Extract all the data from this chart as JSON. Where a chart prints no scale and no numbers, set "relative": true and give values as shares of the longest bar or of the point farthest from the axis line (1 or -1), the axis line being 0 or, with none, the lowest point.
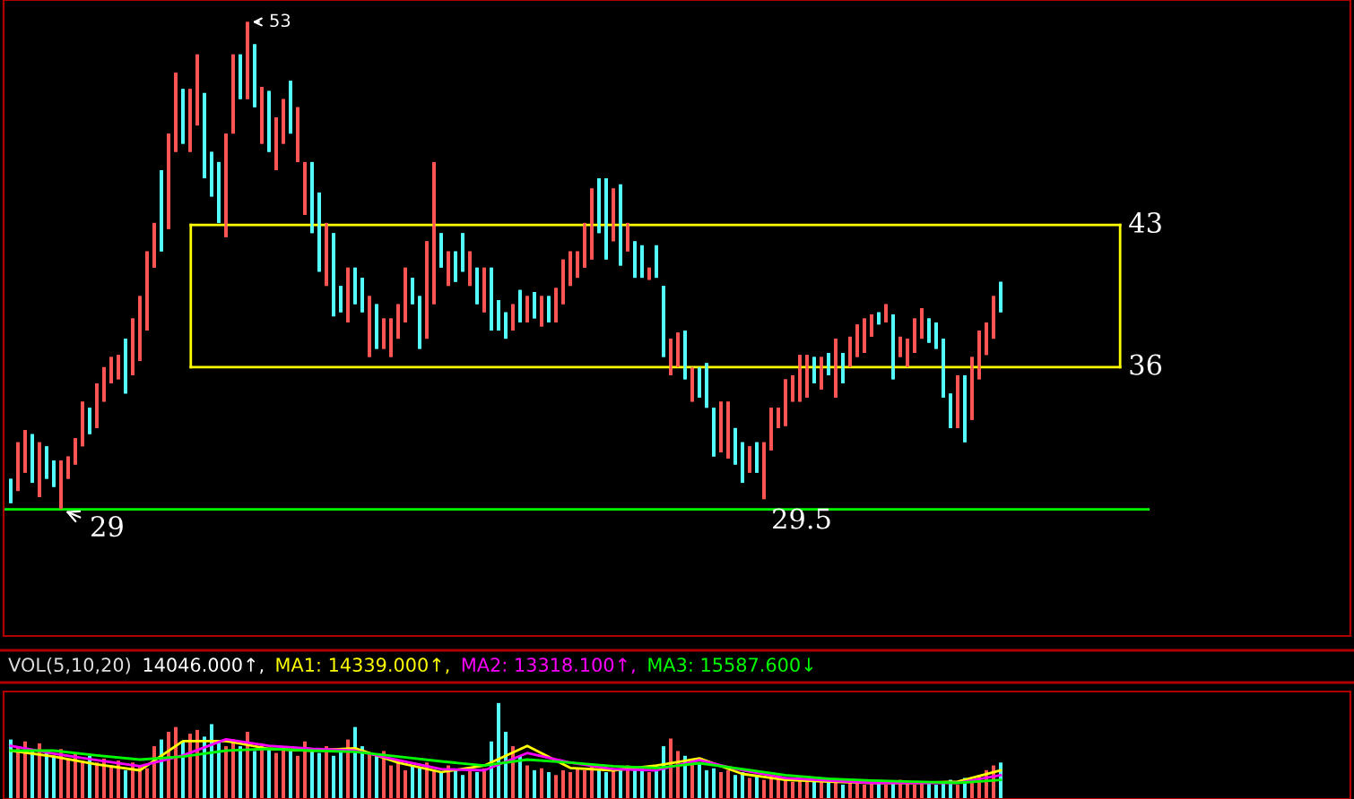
{
  "chart_data": [
    {
      "type": "candlestick",
      "categories": [
        null,
        null,
        null,
        null,
        null,
        null,
        null,
        null,
        null,
        null,
        null,
        null,
        null,
        null,
        null,
        null,
        null,
        null,
        null,
        null,
        null,
        null,
        null,
        null,
        null,
        null,
        null,
        null,
        null,
        null,
        null,
        null,
        null,
        null,
        null,
        null,
        null,
        null,
        null,
        null,
        null,
        null,
        null,
        null,
        null,
        null,
        null,
        null,
        null,
        null,
        null,
        null,
        null,
        null,
        null,
        null,
        null,
        null,
        null,
        null,
        null,
        null,
        null,
        null,
        null,
        null,
        null,
        null,
        null,
        null,
        null,
        null,
        null,
        null,
        null,
        null,
        null,
        null,
        null,
        null,
        null,
        null,
        null,
        null,
        null,
        null,
        null,
        null,
        null,
        null,
        null,
        null,
        null,
        null,
        null,
        null,
        null,
        null,
        null,
        null,
        null,
        null,
        null,
        null,
        null,
        null,
        null,
        null,
        null,
        null,
        null,
        null,
        null,
        null,
        null,
        null,
        null,
        null,
        null,
        null,
        null,
        null,
        null,
        null,
        null,
        null,
        null,
        null,
        null,
        null,
        null,
        null,
        null,
        null,
        null,
        null,
        null,
        null,
        null
      ],
      "ohlc": [
        [
          30.5,
          30.5,
          29.3,
          29.3
        ],
        [
          29.9,
          32.3,
          29.9,
          32.3
        ],
        [
          30.8,
          32.9,
          30.8,
          32.9
        ],
        [
          32.7,
          32.7,
          30.3,
          30.3
        ],
        [
          29.6,
          32.3,
          29.6,
          32.3
        ],
        [
          32.1,
          32.1,
          30.5,
          30.5
        ],
        [
          31.4,
          31.4,
          30.1,
          30.1
        ],
        [
          29.0,
          31.4,
          29.0,
          31.4
        ],
        [
          30.5,
          31.6,
          30.5,
          31.6
        ],
        [
          31.2,
          32.5,
          31.2,
          32.5
        ],
        [
          32.1,
          34.3,
          32.1,
          34.3
        ],
        [
          34.0,
          34.0,
          32.7,
          32.7
        ],
        [
          33.0,
          35.2,
          33.0,
          35.2
        ],
        [
          34.3,
          36.0,
          34.3,
          36.0
        ],
        [
          35.2,
          36.5,
          35.2,
          36.5
        ],
        [
          35.4,
          36.6,
          35.4,
          36.6
        ],
        [
          37.4,
          37.4,
          34.7,
          34.7
        ],
        [
          35.6,
          38.4,
          35.6,
          38.4
        ],
        [
          36.3,
          39.5,
          36.3,
          39.5
        ],
        [
          37.8,
          41.7,
          37.8,
          41.7
        ],
        [
          40.9,
          43.1,
          40.9,
          43.1
        ],
        [
          45.7,
          45.7,
          41.7,
          41.7
        ],
        [
          42.8,
          47.5,
          42.8,
          47.5
        ],
        [
          46.6,
          50.5,
          46.6,
          50.5
        ],
        [
          49.7,
          49.7,
          47.0,
          47.0
        ],
        [
          46.6,
          49.7,
          46.6,
          49.7
        ],
        [
          47.9,
          51.4,
          47.9,
          51.4
        ],
        [
          49.5,
          49.5,
          45.3,
          45.3
        ],
        [
          46.6,
          46.6,
          44.4,
          44.4
        ],
        [
          46.1,
          46.1,
          43.1,
          43.1
        ],
        [
          42.4,
          47.5,
          42.4,
          47.5
        ],
        [
          47.5,
          51.4,
          47.5,
          51.4
        ],
        [
          51.4,
          51.4,
          49.2,
          49.2
        ],
        [
          49.2,
          53.0,
          49.2,
          53.0
        ],
        [
          51.9,
          51.9,
          48.8,
          48.8
        ],
        [
          47.0,
          49.8,
          47.0,
          49.8
        ],
        [
          49.6,
          49.6,
          46.6,
          46.6
        ],
        [
          45.7,
          48.3,
          45.7,
          48.3
        ],
        [
          47.0,
          49.2,
          47.0,
          49.2
        ],
        [
          50.1,
          50.1,
          47.5,
          47.5
        ],
        [
          46.1,
          48.8,
          46.1,
          48.8
        ],
        [
          43.5,
          46.1,
          43.5,
          46.1
        ],
        [
          46.1,
          46.1,
          42.6,
          42.6
        ],
        [
          44.6,
          44.6,
          40.7,
          40.7
        ],
        [
          40.0,
          43.1,
          40.0,
          43.1
        ],
        [
          42.6,
          42.6,
          38.5,
          38.5
        ],
        [
          40.0,
          40.0,
          38.7,
          38.7
        ],
        [
          38.2,
          40.9,
          38.2,
          40.9
        ],
        [
          40.9,
          40.9,
          39.1,
          39.1
        ],
        [
          40.4,
          40.4,
          38.7,
          38.7
        ],
        [
          36.5,
          39.5,
          36.5,
          39.5
        ],
        [
          39.1,
          39.1,
          36.9,
          36.9
        ],
        [
          36.9,
          38.4,
          36.9,
          38.4
        ],
        [
          36.5,
          38.4,
          36.5,
          38.4
        ],
        [
          37.4,
          39.1,
          37.4,
          39.1
        ],
        [
          38.2,
          40.9,
          38.2,
          40.9
        ],
        [
          40.4,
          40.4,
          39.1,
          39.1
        ],
        [
          39.5,
          39.5,
          36.9,
          36.9
        ],
        [
          37.4,
          42.2,
          37.4,
          42.2
        ],
        [
          39.1,
          46.1,
          39.1,
          46.1
        ],
        [
          42.6,
          42.6,
          40.9,
          40.9
        ],
        [
          40.0,
          41.7,
          40.0,
          41.7
        ],
        [
          41.7,
          41.7,
          40.2,
          40.2
        ],
        [
          42.6,
          42.6,
          40.7,
          40.7
        ],
        [
          40.0,
          41.7,
          40.0,
          41.7
        ],
        [
          40.9,
          40.9,
          39.1,
          39.1
        ],
        [
          38.7,
          40.9,
          38.7,
          40.9
        ],
        [
          40.9,
          40.9,
          37.8,
          37.8
        ],
        [
          39.3,
          39.3,
          37.8,
          37.8
        ],
        [
          38.7,
          38.7,
          37.4,
          37.4
        ],
        [
          37.8,
          39.1,
          37.8,
          39.1
        ],
        [
          39.8,
          39.8,
          38.2,
          38.2
        ],
        [
          38.2,
          39.5,
          38.2,
          39.5
        ],
        [
          39.7,
          39.7,
          38.4,
          38.4
        ],
        [
          38.0,
          39.5,
          38.0,
          39.5
        ],
        [
          39.5,
          39.5,
          38.2,
          38.2
        ],
        [
          38.2,
          39.9,
          38.2,
          39.9
        ],
        [
          39.1,
          41.3,
          39.1,
          41.3
        ],
        [
          40.0,
          41.7,
          40.0,
          41.7
        ],
        [
          40.4,
          41.7,
          40.4,
          41.7
        ],
        [
          40.9,
          43.1,
          40.9,
          43.1
        ],
        [
          41.3,
          44.8,
          41.3,
          44.8
        ],
        [
          45.3,
          45.3,
          42.6,
          42.6
        ],
        [
          45.3,
          45.3,
          41.3,
          41.3
        ],
        [
          42.2,
          44.8,
          42.2,
          44.8
        ],
        [
          45.0,
          45.0,
          41.0,
          41.0
        ],
        [
          41.7,
          43.1,
          41.7,
          43.1
        ],
        [
          42.2,
          42.2,
          40.4,
          40.4
        ],
        [
          42.0,
          42.0,
          40.4,
          40.4
        ],
        [
          40.3,
          40.9,
          40.3,
          40.9
        ],
        [
          42.0,
          42.0,
          40.4,
          40.4
        ],
        [
          40.0,
          40.0,
          36.5,
          36.5
        ],
        [
          35.6,
          37.4,
          35.6,
          37.4
        ],
        [
          36.0,
          37.7,
          36.0,
          37.7
        ],
        [
          37.8,
          37.8,
          35.4,
          35.4
        ],
        [
          34.3,
          36.0,
          34.3,
          36.0
        ],
        [
          36.0,
          36.0,
          34.5,
          34.5
        ],
        [
          36.2,
          36.2,
          34.0,
          34.0
        ],
        [
          34.0,
          34.0,
          31.6,
          31.6
        ],
        [
          31.8,
          34.3,
          31.8,
          34.3
        ],
        [
          31.5,
          34.3,
          31.5,
          34.3
        ],
        [
          33.0,
          33.0,
          31.2,
          31.2
        ],
        [
          32.3,
          32.3,
          30.3,
          30.3
        ],
        [
          30.8,
          32.1,
          30.8,
          32.1
        ],
        [
          32.3,
          32.3,
          30.8,
          30.8
        ],
        [
          29.5,
          32.3,
          29.5,
          32.3
        ],
        [
          31.9,
          34.0,
          31.9,
          34.0
        ],
        [
          33.0,
          34.0,
          33.0,
          34.0
        ],
        [
          33.1,
          35.4,
          33.1,
          35.4
        ],
        [
          34.3,
          35.6,
          34.3,
          35.6
        ],
        [
          34.3,
          36.6,
          34.3,
          36.6
        ],
        [
          34.5,
          36.6,
          34.5,
          36.6
        ],
        [
          36.5,
          36.5,
          35.2,
          35.2
        ],
        [
          34.9,
          36.5,
          34.9,
          36.5
        ],
        [
          36.7,
          36.7,
          35.6,
          35.6
        ],
        [
          34.5,
          37.4,
          34.5,
          37.4
        ],
        [
          36.7,
          36.7,
          35.2,
          35.2
        ],
        [
          36.0,
          37.5,
          36.0,
          37.5
        ],
        [
          36.5,
          38.1,
          36.5,
          38.1
        ],
        [
          36.7,
          38.4,
          36.7,
          38.4
        ],
        [
          37.5,
          38.6,
          37.5,
          38.6
        ],
        [
          38.7,
          38.7,
          38.1,
          38.1
        ],
        [
          38.2,
          39.1,
          38.2,
          39.1
        ],
        [
          38.6,
          38.6,
          35.4,
          35.4
        ],
        [
          36.5,
          37.5,
          36.5,
          37.5
        ],
        [
          36.0,
          37.4,
          36.0,
          37.4
        ],
        [
          36.7,
          38.4,
          36.7,
          38.4
        ],
        [
          37.4,
          38.9,
          37.4,
          38.9
        ],
        [
          38.4,
          38.4,
          37.2,
          37.2
        ],
        [
          38.2,
          38.2,
          36.9,
          36.9
        ],
        [
          37.4,
          37.4,
          34.5,
          34.5
        ],
        [
          34.7,
          34.7,
          33.0,
          33.0
        ],
        [
          33.0,
          35.6,
          33.0,
          35.6
        ],
        [
          35.6,
          35.6,
          32.3,
          32.3
        ],
        [
          33.4,
          36.5,
          33.4,
          36.5
        ],
        [
          35.4,
          37.8,
          35.4,
          37.8
        ],
        [
          36.6,
          38.2,
          36.6,
          38.2
        ],
        [
          37.4,
          39.5,
          37.4,
          39.5
        ],
        [
          40.2,
          40.2,
          38.7,
          38.7
        ]
      ],
      "colors": [
        "#54fcfc",
        "#ff5454",
        "#ff5454",
        "#54fcfc",
        "#ff5454",
        "#54fcfc",
        "#54fcfc",
        "#ff5454",
        "#ff5454",
        "#ff5454",
        "#ff5454",
        "#54fcfc",
        "#ff5454",
        "#ff5454",
        "#ff5454",
        "#ff5454",
        "#54fcfc",
        "#ff5454",
        "#ff5454",
        "#ff5454",
        "#ff5454",
        "#54fcfc",
        "#ff5454",
        "#ff5454",
        "#54fcfc",
        "#ff5454",
        "#ff5454",
        "#54fcfc",
        "#54fcfc",
        "#54fcfc",
        "#ff5454",
        "#ff5454",
        "#54fcfc",
        "#ff5454",
        "#54fcfc",
        "#ff5454",
        "#54fcfc",
        "#ff5454",
        "#ff5454",
        "#54fcfc",
        "#ff5454",
        "#ff5454",
        "#54fcfc",
        "#54fcfc",
        "#ff5454",
        "#54fcfc",
        "#54fcfc",
        "#ff5454",
        "#54fcfc",
        "#54fcfc",
        "#ff5454",
        "#54fcfc",
        "#ff5454",
        "#ff5454",
        "#ff5454",
        "#ff5454",
        "#54fcfc",
        "#54fcfc",
        "#ff5454",
        "#ff5454",
        "#54fcfc",
        "#ff5454",
        "#54fcfc",
        "#54fcfc",
        "#ff5454",
        "#54fcfc",
        "#ff5454",
        "#54fcfc",
        "#54fcfc",
        "#54fcfc",
        "#ff5454",
        "#54fcfc",
        "#ff5454",
        "#54fcfc",
        "#ff5454",
        "#54fcfc",
        "#ff5454",
        "#ff5454",
        "#ff5454",
        "#ff5454",
        "#ff5454",
        "#ff5454",
        "#54fcfc",
        "#54fcfc",
        "#ff5454",
        "#54fcfc",
        "#ff5454",
        "#54fcfc",
        "#54fcfc",
        "#ff5454",
        "#54fcfc",
        "#54fcfc",
        "#ff5454",
        "#ff5454",
        "#54fcfc",
        "#ff5454",
        "#54fcfc",
        "#54fcfc",
        "#54fcfc",
        "#ff5454",
        "#ff5454",
        "#54fcfc",
        "#54fcfc",
        "#ff5454",
        "#54fcfc",
        "#ff5454",
        "#ff5454",
        "#ff5454",
        "#ff5454",
        "#ff5454",
        "#ff5454",
        "#ff5454",
        "#54fcfc",
        "#ff5454",
        "#54fcfc",
        "#ff5454",
        "#54fcfc",
        "#ff5454",
        "#ff5454",
        "#ff5454",
        "#ff5454",
        "#54fcfc",
        "#ff5454",
        "#54fcfc",
        "#ff5454",
        "#ff5454",
        "#ff5454",
        "#ff5454",
        "#54fcfc",
        "#54fcfc",
        "#54fcfc",
        "#54fcfc",
        "#ff5454",
        "#54fcfc",
        "#ff5454",
        "#ff5454",
        "#ff5454",
        "#ff5454",
        "#54fcfc"
      ],
      "annotations": [
        "53",
        {
          "text": "29",
          "y": 29
        },
        "29.5"
      ],
      "ref_lines": [
        {
          "axis": "y",
          "value": 43,
          "label": "43",
          "color": "#ffff00"
        },
        {
          "axis": "y",
          "value": 36,
          "label": "36",
          "color": "#ffff00"
        },
        {
          "axis": "y",
          "value": 29,
          "color": "#00ff00"
        }
      ]
    },
    {
      "type": "bar",
      "relative": true,
      "title": "VOL(5,10,20)",
      "categories": [
        null,
        null,
        null,
        null,
        null,
        null,
        null,
        null,
        null,
        null,
        null,
        null,
        null,
        null,
        null,
        null,
        null,
        null,
        null,
        null,
        null,
        null,
        null,
        null,
        null,
        null,
        null,
        null,
        null,
        null,
        null,
        null,
        null,
        null,
        null,
        null,
        null,
        null,
        null,
        null,
        null,
        null,
        null,
        null,
        null,
        null,
        null,
        null,
        null,
        null,
        null,
        null,
        null,
        null,
        null,
        null,
        null,
        null,
        null,
        null,
        null,
        null,
        null,
        null,
        null,
        null,
        null,
        null,
        null,
        null,
        null,
        null,
        null,
        null,
        null,
        null,
        null,
        null,
        null,
        null,
        null,
        null,
        null,
        null,
        null,
        null,
        null,
        null,
        null,
        null,
        null,
        null,
        null,
        null,
        null,
        null,
        null,
        null,
        null,
        null,
        null,
        null,
        null,
        null,
        null,
        null,
        null,
        null,
        null,
        null,
        null,
        null,
        null,
        null,
        null,
        null,
        null,
        null,
        null,
        null,
        null,
        null,
        null,
        null,
        null,
        null,
        null,
        null,
        null,
        null,
        null,
        null,
        null,
        null,
        null,
        null,
        null,
        null,
        null
      ],
      "series": [
        {
          "name": "14046.000↑,",
          "color": "#ffffff",
          "colors": [
            "#54fcfc",
            "#ff5454",
            "#ff5454",
            "#54fcfc",
            "#ff5454",
            "#54fcfc",
            "#54fcfc",
            "#ff5454",
            "#ff5454",
            "#ff5454",
            "#ff5454",
            "#54fcfc",
            "#ff5454",
            "#ff5454",
            "#ff5454",
            "#ff5454",
            "#54fcfc",
            "#ff5454",
            "#ff5454",
            "#ff5454",
            "#ff5454",
            "#54fcfc",
            "#ff5454",
            "#ff5454",
            "#54fcfc",
            "#ff5454",
            "#ff5454",
            "#54fcfc",
            "#54fcfc",
            "#54fcfc",
            "#ff5454",
            "#ff5454",
            "#54fcfc",
            "#ff5454",
            "#54fcfc",
            "#ff5454",
            "#54fcfc",
            "#ff5454",
            "#ff5454",
            "#54fcfc",
            "#ff5454",
            "#ff5454",
            "#54fcfc",
            "#54fcfc",
            "#ff5454",
            "#54fcfc",
            "#54fcfc",
            "#ff5454",
            "#54fcfc",
            "#54fcfc",
            "#ff5454",
            "#54fcfc",
            "#ff5454",
            "#ff5454",
            "#ff5454",
            "#ff5454",
            "#54fcfc",
            "#54fcfc",
            "#ff5454",
            "#ff5454",
            "#54fcfc",
            "#ff5454",
            "#54fcfc",
            "#54fcfc",
            "#ff5454",
            "#54fcfc",
            "#ff5454",
            "#54fcfc",
            "#54fcfc",
            "#54fcfc",
            "#ff5454",
            "#54fcfc",
            "#ff5454",
            "#54fcfc",
            "#ff5454",
            "#54fcfc",
            "#ff5454",
            "#ff5454",
            "#ff5454",
            "#ff5454",
            "#ff5454",
            "#ff5454",
            "#54fcfc",
            "#54fcfc",
            "#ff5454",
            "#54fcfc",
            "#ff5454",
            "#54fcfc",
            "#54fcfc",
            "#ff5454",
            "#54fcfc",
            "#54fcfc",
            "#ff5454",
            "#ff5454",
            "#54fcfc",
            "#ff5454",
            "#54fcfc",
            "#54fcfc",
            "#54fcfc",
            "#ff5454",
            "#ff5454",
            "#54fcfc",
            "#54fcfc",
            "#ff5454",
            "#54fcfc",
            "#ff5454",
            "#ff5454",
            "#ff5454",
            "#ff5454",
            "#ff5454",
            "#ff5454",
            "#ff5454",
            "#54fcfc",
            "#ff5454",
            "#54fcfc",
            "#ff5454",
            "#54fcfc",
            "#ff5454",
            "#ff5454",
            "#ff5454",
            "#ff5454",
            "#54fcfc",
            "#ff5454",
            "#54fcfc",
            "#ff5454",
            "#ff5454",
            "#ff5454",
            "#ff5454",
            "#54fcfc",
            "#54fcfc",
            "#54fcfc",
            "#54fcfc",
            "#ff5454",
            "#54fcfc",
            "#ff5454",
            "#ff5454",
            "#ff5454",
            "#ff5454",
            "#54fcfc"
          ],
          "values": [
            0.62,
            0.55,
            0.6,
            0.5,
            0.58,
            0.5,
            0.45,
            0.52,
            0.42,
            0.48,
            0.4,
            0.45,
            0.38,
            0.42,
            0.35,
            0.4,
            0.3,
            0.38,
            0.35,
            0.32,
            0.55,
            0.62,
            0.7,
            0.75,
            0.6,
            0.68,
            0.72,
            0.65,
            0.78,
            0.6,
            0.55,
            0.62,
            0.55,
            0.7,
            0.5,
            0.58,
            0.52,
            0.48,
            0.55,
            0.5,
            0.45,
            0.6,
            0.52,
            0.48,
            0.55,
            0.45,
            0.5,
            0.62,
            0.75,
            0.55,
            0.48,
            0.45,
            0.5,
            0.35,
            0.4,
            0.3,
            0.35,
            0.32,
            0.38,
            0.3,
            0.28,
            0.35,
            0.3,
            0.25,
            0.3,
            0.28,
            0.32,
            0.6,
            1.0,
            0.7,
            0.55,
            0.45,
            0.35,
            0.3,
            0.32,
            0.28,
            0.25,
            0.3,
            0.28,
            0.32,
            0.3,
            0.35,
            0.3,
            0.28,
            0.32,
            0.3,
            0.35,
            0.3,
            0.32,
            0.28,
            0.3,
            0.55,
            0.63,
            0.5,
            0.45,
            0.4,
            0.38,
            0.3,
            0.32,
            0.28,
            0.3,
            0.25,
            0.28,
            0.22,
            0.25,
            0.2,
            0.22,
            0.25,
            0.2,
            0.18,
            0.22,
            0.2,
            0.18,
            0.2,
            0.22,
            0.18,
            0.15,
            0.2,
            0.17,
            0.15,
            0.18,
            0.16,
            0.15,
            0.18,
            0.2,
            0.16,
            0.15,
            0.18,
            0.17,
            0.15,
            0.16,
            0.2,
            0.15,
            0.22,
            0.18,
            0.25,
            0.3,
            0.35,
            0.38
          ]
        }
      ]
    },
    {
      "type": "line",
      "relative": true,
      "categories": [
        null,
        null,
        null,
        null,
        null,
        null,
        null,
        null,
        null,
        null,
        null,
        null,
        null,
        null,
        null,
        null,
        null,
        null,
        null,
        null,
        null,
        null,
        null,
        null
      ],
      "series": [
        {
          "name": "MA1: 14339.000↑,",
          "color": "#ffff00",
          "values": [
            0.81,
            0.71,
            0.58,
            0.48,
            0.97,
            0.97,
            0.84,
            0.81,
            0.85,
            0.61,
            0.45,
            0.56,
            0.89,
            0.52,
            0.48,
            0.56,
            0.68,
            0.42,
            0.32,
            0.29,
            0.27,
            0.27,
            0.29,
            0.48
          ]
        },
        {
          "name": "MA2: 13318.100↑,",
          "color": "#ff00ff",
          "values": [
            0.89,
            0.76,
            0.65,
            0.55,
            0.73,
            1.0,
            0.89,
            0.84,
            0.81,
            0.65,
            0.5,
            0.48,
            0.77,
            0.61,
            0.5,
            0.48,
            0.65,
            0.48,
            0.35,
            0.31,
            0.27,
            0.27,
            0.27,
            0.4
          ]
        },
        {
          "name": "MA3: 15587.600↓",
          "color": "#00ff00",
          "values": [
            0.81,
            0.81,
            0.73,
            0.66,
            0.71,
            0.81,
            0.84,
            0.81,
            0.79,
            0.71,
            0.63,
            0.56,
            0.66,
            0.61,
            0.55,
            0.52,
            0.6,
            0.5,
            0.4,
            0.34,
            0.31,
            0.29,
            0.27,
            0.32
          ]
        }
      ]
    }
  ]
}
